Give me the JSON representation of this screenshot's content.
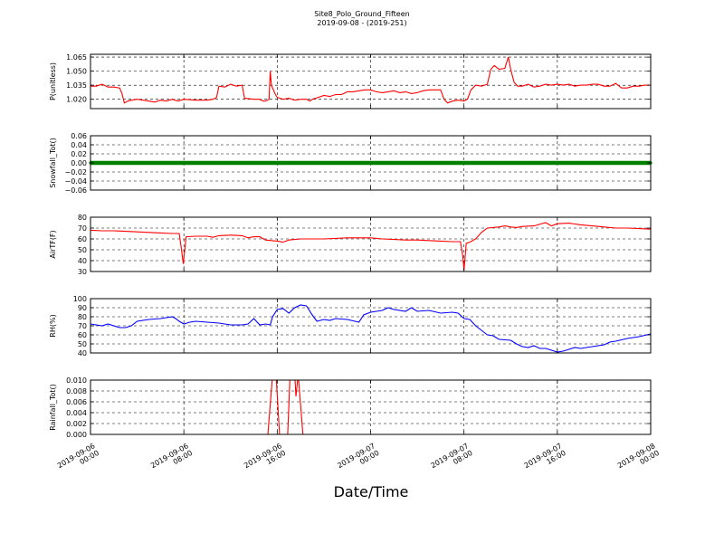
{
  "figure": {
    "title": "Site8_Polo_Ground_Fifteen",
    "subtitle": "2019-09-08 - (2019-251)",
    "xlabel": "Date/Time",
    "x_ticks": [
      "2019-09-06\n00:00",
      "2019-09-06\n08:00",
      "2019-09-06\n16:00",
      "2019-09-07\n00:00",
      "2019-09-07\n08:00",
      "2019-09-07\n16:00",
      "2019-09-08\n00:00"
    ]
  },
  "chart_data": [
    {
      "type": "line",
      "ylabel": "P(unitless)",
      "ylim": [
        1.01,
        1.068
      ],
      "yticks": [
        "1.020",
        "1.035",
        "1.050",
        "1.065"
      ],
      "grid": true,
      "color": "#ff0000",
      "x_range_hours": [
        0,
        48
      ],
      "points": [
        [
          0,
          1.034
        ],
        [
          0.5,
          1.034
        ],
        [
          1,
          1.036
        ],
        [
          1.5,
          1.033
        ],
        [
          2,
          1.033
        ],
        [
          2.5,
          1.032
        ],
        [
          2.7,
          1.026
        ],
        [
          2.9,
          1.016
        ],
        [
          3.2,
          1.018
        ],
        [
          3.5,
          1.019
        ],
        [
          4,
          1.02
        ],
        [
          5,
          1.018
        ],
        [
          5.5,
          1.017
        ],
        [
          6,
          1.019
        ],
        [
          6.5,
          1.018
        ],
        [
          7,
          1.02
        ],
        [
          7.5,
          1.018
        ],
        [
          8,
          1.02
        ],
        [
          9,
          1.019
        ],
        [
          10,
          1.019
        ],
        [
          10.5,
          1.02
        ],
        [
          10.8,
          1.022
        ],
        [
          11,
          1.034
        ],
        [
          11.5,
          1.033
        ],
        [
          12,
          1.036
        ],
        [
          12.5,
          1.034
        ],
        [
          13,
          1.035
        ],
        [
          13.2,
          1.021
        ],
        [
          14,
          1.02
        ],
        [
          14.5,
          1.02
        ],
        [
          14.8,
          1.018
        ],
        [
          15,
          1.018
        ],
        [
          15.3,
          1.02
        ],
        [
          15.4,
          1.05
        ],
        [
          15.5,
          1.035
        ],
        [
          15.8,
          1.026
        ],
        [
          16,
          1.022
        ],
        [
          16.5,
          1.02
        ],
        [
          17,
          1.021
        ],
        [
          17.5,
          1.019
        ],
        [
          18,
          1.02
        ],
        [
          18.5,
          1.02
        ],
        [
          18.8,
          1.018
        ],
        [
          19,
          1.02
        ],
        [
          19.5,
          1.022
        ],
        [
          20,
          1.024
        ],
        [
          20.5,
          1.023
        ],
        [
          21,
          1.025
        ],
        [
          21.5,
          1.025
        ],
        [
          22,
          1.028
        ],
        [
          22.5,
          1.028
        ],
        [
          23,
          1.029
        ],
        [
          23.5,
          1.03
        ],
        [
          24,
          1.03
        ],
        [
          24.5,
          1.028
        ],
        [
          25,
          1.027
        ],
        [
          25.5,
          1.028
        ],
        [
          26,
          1.029
        ],
        [
          26.5,
          1.027
        ],
        [
          27,
          1.028
        ],
        [
          27.5,
          1.026
        ],
        [
          28,
          1.027
        ],
        [
          28.5,
          1.029
        ],
        [
          29,
          1.03
        ],
        [
          29.5,
          1.03
        ],
        [
          30,
          1.03
        ],
        [
          30.3,
          1.02
        ],
        [
          30.6,
          1.016
        ],
        [
          31,
          1.018
        ],
        [
          31.5,
          1.019
        ],
        [
          32,
          1.018
        ],
        [
          32.3,
          1.02
        ],
        [
          32.6,
          1.03
        ],
        [
          33,
          1.035
        ],
        [
          33.5,
          1.034
        ],
        [
          34,
          1.036
        ],
        [
          34.3,
          1.052
        ],
        [
          34.6,
          1.056
        ],
        [
          35,
          1.052
        ],
        [
          35.5,
          1.053
        ],
        [
          35.8,
          1.065
        ],
        [
          36,
          1.052
        ],
        [
          36.3,
          1.038
        ],
        [
          36.6,
          1.034
        ],
        [
          37,
          1.034
        ],
        [
          37.5,
          1.036
        ],
        [
          38,
          1.033
        ],
        [
          38.5,
          1.034
        ],
        [
          39,
          1.036
        ],
        [
          39.5,
          1.035
        ],
        [
          40,
          1.036
        ],
        [
          40.5,
          1.035
        ],
        [
          41,
          1.036
        ],
        [
          41.5,
          1.034
        ],
        [
          42,
          1.035
        ],
        [
          42.5,
          1.035
        ],
        [
          43,
          1.036
        ],
        [
          43.5,
          1.036
        ],
        [
          44,
          1.034
        ],
        [
          44.5,
          1.034
        ],
        [
          45,
          1.037
        ],
        [
          45.5,
          1.032
        ],
        [
          46,
          1.032
        ],
        [
          46.5,
          1.034
        ],
        [
          47,
          1.034
        ],
        [
          47.5,
          1.035
        ],
        [
          48,
          1.035
        ]
      ]
    },
    {
      "type": "line",
      "ylabel": "Snowfall_Tot()",
      "ylim": [
        -0.06,
        0.06
      ],
      "yticks": [
        "−0.06",
        "−0.04",
        "−0.02",
        "0.00",
        "0.02",
        "0.04",
        "0.06"
      ],
      "grid": true,
      "color": "#008000",
      "constant_value": 0.0,
      "x_range_hours": [
        0,
        48
      ]
    },
    {
      "type": "line",
      "ylabel": "AirTF(F)",
      "ylim": [
        30,
        80
      ],
      "yticks": [
        "30",
        "40",
        "50",
        "60",
        "70",
        "80"
      ],
      "grid": true,
      "color": "#ff0000",
      "x_range_hours": [
        0,
        48
      ],
      "points": [
        [
          0,
          68
        ],
        [
          1,
          67.5
        ],
        [
          2,
          67.5
        ],
        [
          3,
          67
        ],
        [
          4,
          66.5
        ],
        [
          5,
          66
        ],
        [
          6,
          65.5
        ],
        [
          7,
          65
        ],
        [
          7.6,
          65
        ],
        [
          7.8,
          50
        ],
        [
          7.95,
          37
        ],
        [
          8.2,
          62
        ],
        [
          9,
          62.5
        ],
        [
          10,
          62.5
        ],
        [
          10.5,
          61.5
        ],
        [
          11,
          63
        ],
        [
          12,
          63.5
        ],
        [
          13,
          63
        ],
        [
          13.5,
          61
        ],
        [
          14,
          62
        ],
        [
          14.5,
          62
        ],
        [
          15,
          59
        ],
        [
          16,
          58
        ],
        [
          16.5,
          57
        ],
        [
          17,
          59
        ],
        [
          18,
          60
        ],
        [
          19,
          60
        ],
        [
          20,
          60
        ],
        [
          21,
          60.5
        ],
        [
          22,
          61
        ],
        [
          23,
          61
        ],
        [
          24,
          61
        ],
        [
          25,
          60
        ],
        [
          26,
          59.5
        ],
        [
          27,
          59
        ],
        [
          28,
          59
        ],
        [
          29,
          58.5
        ],
        [
          30,
          58
        ],
        [
          31,
          57.5
        ],
        [
          31.7,
          57.5
        ],
        [
          31.9,
          44
        ],
        [
          32,
          31
        ],
        [
          32.2,
          56
        ],
        [
          32.5,
          57
        ],
        [
          33,
          60
        ],
        [
          33.5,
          66
        ],
        [
          34,
          70
        ],
        [
          35,
          71
        ],
        [
          35.5,
          72
        ],
        [
          36,
          71
        ],
        [
          36.5,
          70.5
        ],
        [
          37,
          71.5
        ],
        [
          38,
          72
        ],
        [
          39,
          75
        ],
        [
          39.5,
          72
        ],
        [
          40,
          74
        ],
        [
          41,
          74.5
        ],
        [
          42,
          73
        ],
        [
          43,
          72
        ],
        [
          44,
          71
        ],
        [
          45,
          70
        ],
        [
          46,
          70
        ],
        [
          47,
          69.5
        ],
        [
          48,
          69
        ]
      ]
    },
    {
      "type": "line",
      "ylabel": "RH(%)",
      "ylim": [
        40,
        100
      ],
      "yticks": [
        "40",
        "50",
        "60",
        "70",
        "80",
        "90",
        "100"
      ],
      "grid": true,
      "color": "#0000ff",
      "x_range_hours": [
        0,
        48
      ],
      "points": [
        [
          0,
          72
        ],
        [
          1,
          70
        ],
        [
          1.5,
          72
        ],
        [
          2,
          70
        ],
        [
          2.5,
          68
        ],
        [
          3,
          68
        ],
        [
          3.5,
          70
        ],
        [
          4,
          75
        ],
        [
          5,
          77
        ],
        [
          6,
          78
        ],
        [
          6.5,
          79
        ],
        [
          7,
          80
        ],
        [
          7.3,
          78
        ],
        [
          7.6,
          75
        ],
        [
          8,
          72
        ],
        [
          8.5,
          74
        ],
        [
          9,
          75
        ],
        [
          10,
          74
        ],
        [
          11,
          73
        ],
        [
          12,
          71
        ],
        [
          13,
          71
        ],
        [
          13.5,
          72
        ],
        [
          14,
          78
        ],
        [
          14.5,
          71
        ],
        [
          15,
          72
        ],
        [
          15.4,
          71
        ],
        [
          15.6,
          80
        ],
        [
          16,
          88
        ],
        [
          16.5,
          89
        ],
        [
          17,
          84
        ],
        [
          17.5,
          90
        ],
        [
          18,
          93
        ],
        [
          18.5,
          92
        ],
        [
          19,
          82
        ],
        [
          19.4,
          75
        ],
        [
          20,
          77
        ],
        [
          20.5,
          76
        ],
        [
          21,
          78
        ],
        [
          22,
          77
        ],
        [
          23,
          74
        ],
        [
          23.4,
          82
        ],
        [
          24,
          85
        ],
        [
          25,
          87
        ],
        [
          25.5,
          90
        ],
        [
          26,
          88
        ],
        [
          27,
          86
        ],
        [
          27.5,
          90
        ],
        [
          28,
          86
        ],
        [
          29,
          87
        ],
        [
          30,
          84
        ],
        [
          31,
          85
        ],
        [
          31.5,
          84
        ],
        [
          32,
          78
        ],
        [
          32.5,
          77
        ],
        [
          33,
          70
        ],
        [
          33.5,
          65
        ],
        [
          34,
          60
        ],
        [
          34.5,
          59
        ],
        [
          35,
          55
        ],
        [
          36,
          54
        ],
        [
          36.5,
          50
        ],
        [
          37,
          47
        ],
        [
          37.5,
          46
        ],
        [
          38,
          48
        ],
        [
          38.5,
          45
        ],
        [
          39,
          45
        ],
        [
          39.5,
          43
        ],
        [
          40,
          41
        ],
        [
          40.5,
          42
        ],
        [
          41,
          44
        ],
        [
          41.5,
          46
        ],
        [
          42,
          45
        ],
        [
          43,
          47
        ],
        [
          44,
          49
        ],
        [
          44.5,
          52
        ],
        [
          45,
          53
        ],
        [
          46,
          56
        ],
        [
          46.5,
          57
        ],
        [
          47,
          58
        ],
        [
          48,
          61
        ]
      ]
    },
    {
      "type": "line",
      "ylabel": "Rainfall_Tot()",
      "ylim": [
        0.0,
        0.01
      ],
      "yticks": [
        "0.000",
        "0.002",
        "0.004",
        "0.006",
        "0.008",
        "0.010"
      ],
      "grid": true,
      "color": "#ff0000",
      "x_range_hours": [
        0,
        48
      ],
      "points": [
        [
          0,
          0
        ],
        [
          15.2,
          0
        ],
        [
          15.6,
          0.011
        ],
        [
          15.9,
          0.011
        ],
        [
          16.2,
          0
        ],
        [
          16.9,
          0
        ],
        [
          17.1,
          0.011
        ],
        [
          17.5,
          0.011
        ],
        [
          17.6,
          0.007
        ],
        [
          17.8,
          0.011
        ],
        [
          18.2,
          0
        ],
        [
          48,
          0
        ]
      ]
    }
  ]
}
